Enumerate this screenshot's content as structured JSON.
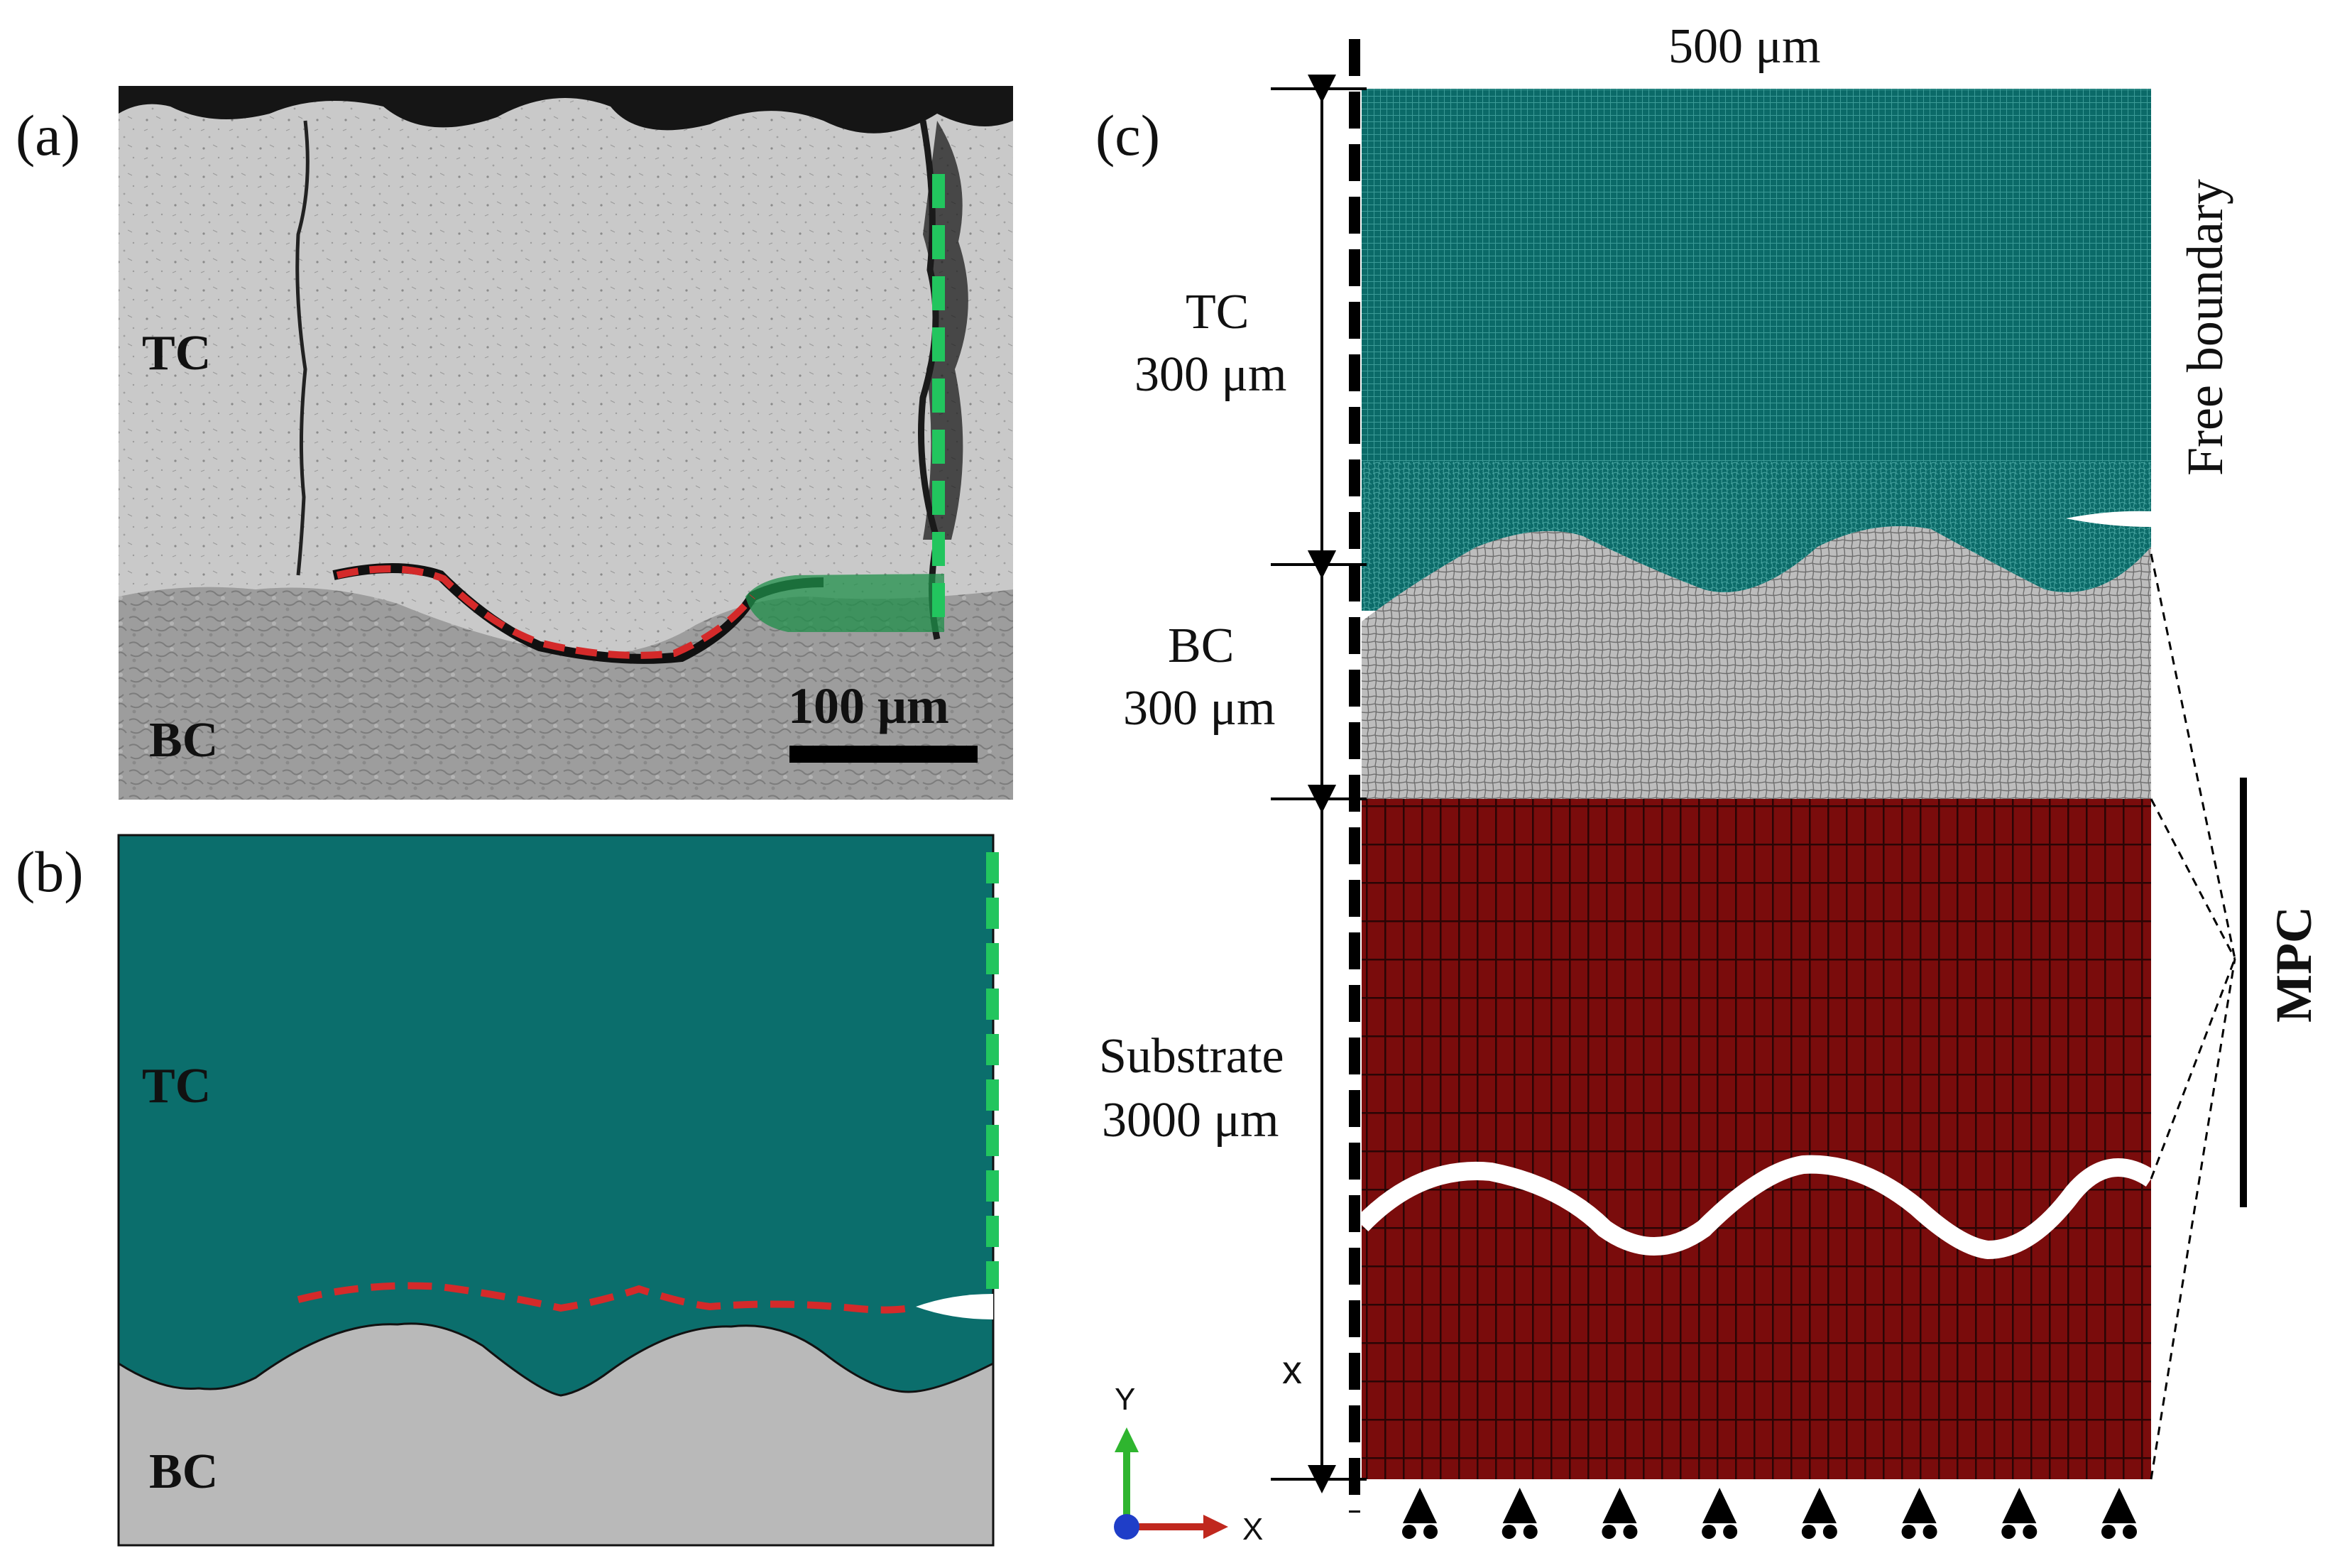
{
  "panels": {
    "a": {
      "label": "(a)",
      "tc_label": "TC",
      "bc_label": "BC",
      "scale_bar_text": "100 μm"
    },
    "b": {
      "label": "(b)",
      "tc_label": "TC",
      "bc_label": "BC"
    },
    "c": {
      "label": "(c)",
      "width_label": "500 μm",
      "free_boundary_label": "Free boundary",
      "mpc_label": "MPC",
      "layers": {
        "tc": {
          "name": "TC",
          "thickness": "300 μm"
        },
        "bc": {
          "name": "BC",
          "thickness": "300 μm"
        },
        "substrate": {
          "name": "Substrate",
          "thickness": "3000 μm"
        }
      },
      "x_dimension_label": "x",
      "axes": {
        "y_label": "Y",
        "x_label": "X"
      },
      "roller_support_count": 8
    }
  },
  "colors": {
    "tc_teal": "#0b6e6c",
    "bc_gray": "#b9b9b9",
    "substrate_red": "#7a0c0c",
    "crack_red": "#d42a2a",
    "crack_green": "#22c55e",
    "axis_y_green": "#2fb52f",
    "axis_x_red": "#c0281e",
    "axis_z_blue": "#1f3ec8"
  }
}
